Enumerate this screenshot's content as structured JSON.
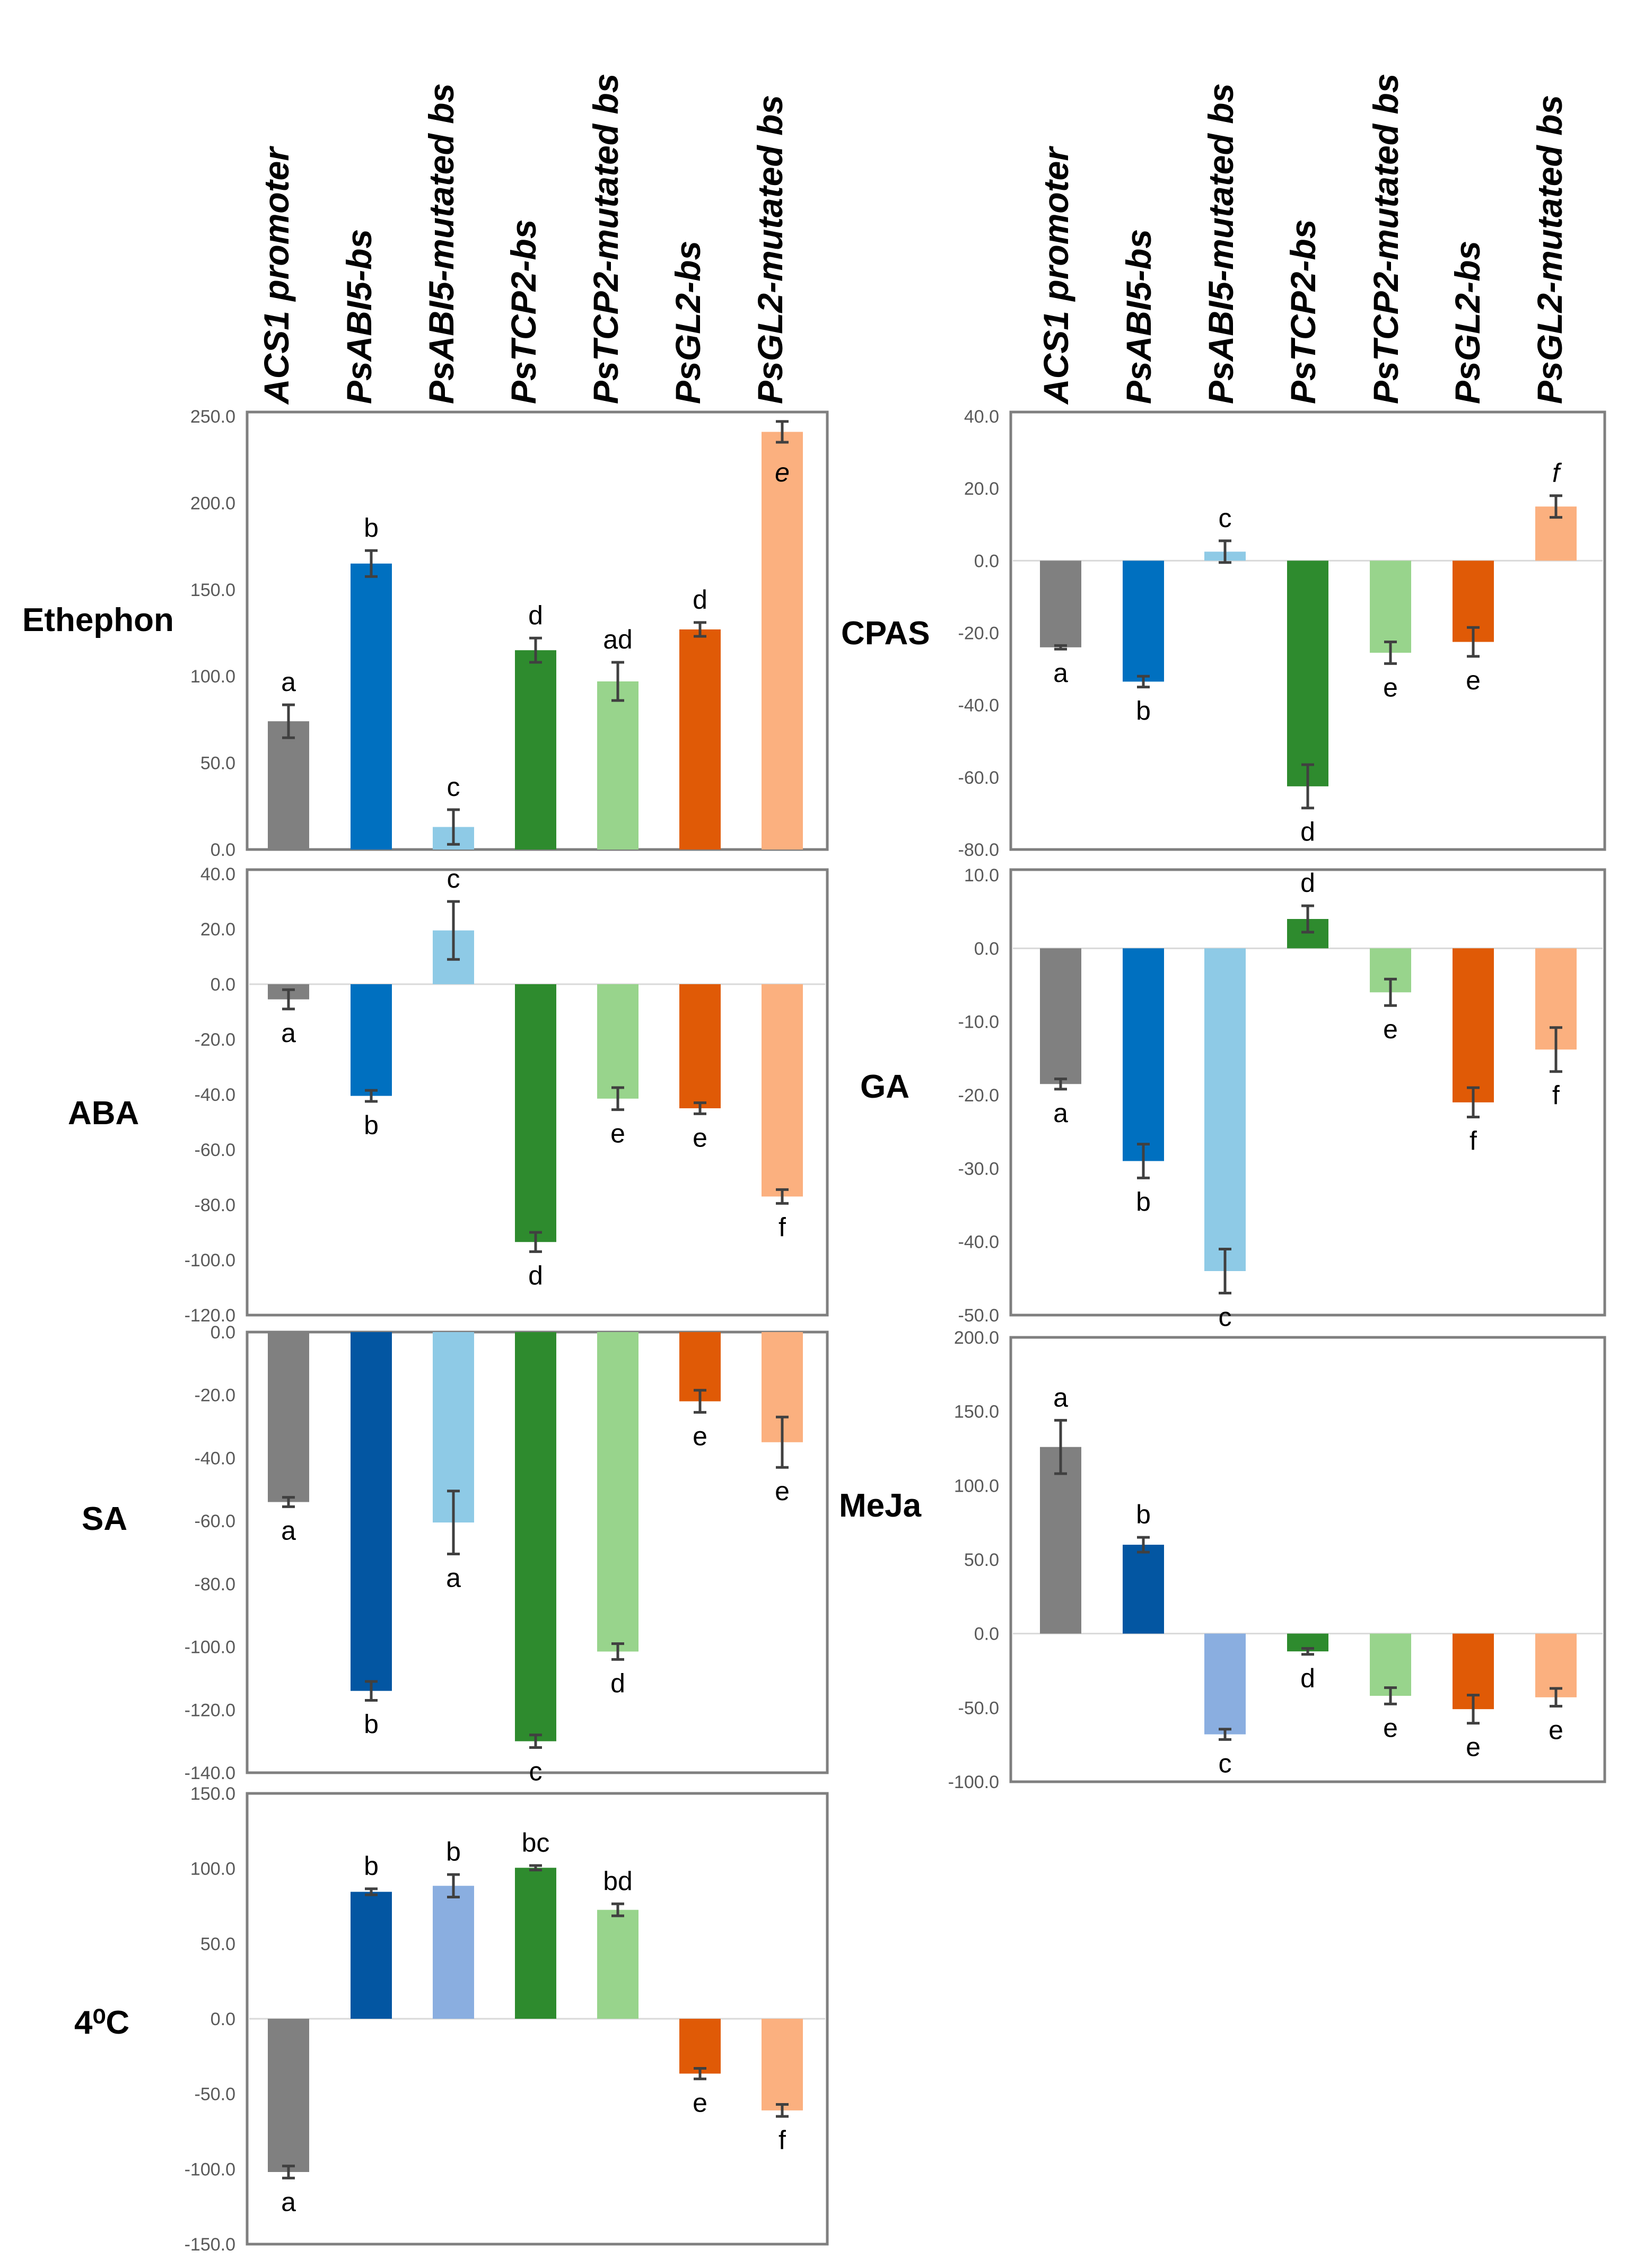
{
  "column_labels": [
    "ACS1 promoter",
    "PsABI5-bs",
    "PsABI5-mutated bs",
    "PsTCP2-bs",
    "PsTCP2-mutated bs",
    "PsGL2-bs",
    "PsGL2-mutated bs"
  ],
  "chart_data": [
    {
      "type": "bar",
      "title": "Ethephon",
      "categories": [
        "ACS1 promoter",
        "PsABI5-bs",
        "PsABI5-mutated bs",
        "PsTCP2-bs",
        "PsTCP2-mutated bs",
        "PsGL2-bs",
        "PsGL2-mutated bs"
      ],
      "values": [
        74.0,
        165.0,
        13.0,
        115.0,
        97.0,
        127.0,
        241.0
      ],
      "errors": [
        9.5,
        7.5,
        10.0,
        7.0,
        11.0,
        4.0,
        6.0
      ],
      "labels": [
        "a",
        "b",
        "c",
        "d",
        "ad",
        "d",
        "e"
      ],
      "ylim": [
        0,
        250
      ],
      "yticks": [
        "250.0",
        "200.0",
        "150.0",
        "100.0",
        "50.0",
        "0.0"
      ]
    },
    {
      "type": "bar",
      "title": "CPAS",
      "categories": [
        "ACS1 promoter",
        "PsABI5-bs",
        "PsABI5-mutated bs",
        "PsTCP2-bs",
        "PsTCP2-mutated bs",
        "PsGL2-bs",
        "PsGL2-mutated bs"
      ],
      "values": [
        -24.0,
        -33.5,
        2.5,
        -62.5,
        -25.5,
        -22.5,
        15.0
      ],
      "errors": [
        0.5,
        1.5,
        3.0,
        6.0,
        3.0,
        4.0,
        3.0
      ],
      "labels": [
        "a",
        "b",
        "c",
        "d",
        "e",
        "e",
        "f"
      ],
      "ylim": [
        -80,
        40
      ],
      "yticks": [
        "40.0",
        "20.0",
        "0.0",
        "-20.0",
        "-40.0",
        "-60.0",
        "-80.0"
      ]
    },
    {
      "type": "bar",
      "title": "ABA",
      "categories": [
        "ACS1 promoter",
        "PsABI5-bs",
        "PsABI5-mutated bs",
        "PsTCP2-bs",
        "PsTCP2-mutated bs",
        "PsGL2-bs",
        "PsGL2-mutated bs"
      ],
      "values": [
        -5.5,
        -40.5,
        19.5,
        -93.5,
        -41.5,
        -45.0,
        -77.0
      ],
      "errors": [
        3.5,
        2.0,
        10.5,
        3.5,
        4.0,
        2.0,
        2.5
      ],
      "labels": [
        "a",
        "b",
        "c",
        "d",
        "e",
        "e",
        "f"
      ],
      "ylim": [
        -120,
        40
      ],
      "yticks": [
        "40.0",
        "20.0",
        "0.0",
        "-20.0",
        "-40.0",
        "-60.0",
        "-80.0",
        "-100.0",
        "-120.0"
      ]
    },
    {
      "type": "bar",
      "title": "GA",
      "categories": [
        "ACS1 promoter",
        "PsABI5-bs",
        "PsABI5-mutated bs",
        "PsTCP2-bs",
        "PsTCP2-mutated bs",
        "PsGL2-bs",
        "PsGL2-mutated bs"
      ],
      "values": [
        -18.5,
        -29.0,
        -44.0,
        4.0,
        -6.0,
        -21.0,
        -13.8
      ],
      "errors": [
        0.7,
        2.3,
        3.0,
        1.8,
        1.8,
        2.0,
        3.0
      ],
      "labels": [
        "a",
        "b",
        "c",
        "d",
        "e",
        "f",
        "f"
      ],
      "ylim": [
        -50,
        10
      ],
      "yticks": [
        "10.0",
        "0.0",
        "-10.0",
        "-20.0",
        "-30.0",
        "-40.0",
        "-50.0"
      ]
    },
    {
      "type": "bar",
      "title": "SA",
      "categories": [
        "ACS1 promoter",
        "PsABI5-bs",
        "PsABI5-mutated bs",
        "PsTCP2-bs",
        "PsTCP2-mutated bs",
        "PsGL2-bs",
        "PsGL2-mutated bs"
      ],
      "values": [
        -54.0,
        -114.0,
        -60.5,
        -130.0,
        -101.5,
        -22.0,
        -35.0
      ],
      "errors": [
        1.5,
        3.0,
        10.0,
        2.0,
        2.5,
        3.5,
        8.0
      ],
      "labels": [
        "a",
        "b",
        "a",
        "c",
        "d",
        "e",
        "e"
      ],
      "ylim": [
        -140,
        0
      ],
      "yticks": [
        "0.0",
        "-20.0",
        "-40.0",
        "-60.0",
        "-80.0",
        "-100.0",
        "-120.0",
        "-140.0"
      ]
    },
    {
      "type": "bar",
      "title": "MeJa",
      "categories": [
        "ACS1 promoter",
        "PsABI5-bs",
        "PsABI5-mutated bs",
        "PsTCP2-bs",
        "PsTCP2-mutated bs",
        "PsGL2-bs",
        "PsGL2-mutated bs"
      ],
      "values": [
        126.0,
        60.0,
        -68.0,
        -12.0,
        -42.0,
        -51.0,
        -43.0
      ],
      "errors": [
        18.0,
        5.0,
        3.5,
        2.0,
        5.5,
        9.5,
        6.0
      ],
      "labels": [
        "a",
        "b",
        "c",
        "d",
        "e",
        "e",
        "e"
      ],
      "ylim": [
        -100,
        200
      ],
      "yticks": [
        "200.0",
        "150.0",
        "100.0",
        "50.0",
        "0.0",
        "-50.0",
        "-100.0"
      ]
    },
    {
      "type": "bar",
      "title": "4⁰C",
      "categories": [
        "ACS1 promoter",
        "PsABI5-bs",
        "PsABI5-mutated bs",
        "PsTCP2-bs",
        "PsTCP2-mutated bs",
        "PsGL2-bs",
        "PsGL2-mutated bs"
      ],
      "values": [
        -102.0,
        84.5,
        88.5,
        100.5,
        72.5,
        -36.5,
        -61.0
      ],
      "errors": [
        4.0,
        2.0,
        7.5,
        1.5,
        4.0,
        3.5,
        4.0
      ],
      "labels": [
        "a",
        "b",
        "b",
        "bc",
        "bd",
        "e",
        "f"
      ],
      "ylim": [
        -150,
        150
      ],
      "yticks": [
        "150.0",
        "100.0",
        "50.0",
        "0.0",
        "-50.0",
        "-100.0",
        "-150.0"
      ]
    }
  ],
  "colors": {
    "frame": "#7f7f7f",
    "axis_text": "#595959",
    "error_bar": "#404040",
    "ethephon": [
      "#808080",
      "#0070c0",
      "#8ecae6",
      "#2e8b2e",
      "#98d48c",
      "#e05a06",
      "#fbb07f"
    ],
    "cpas": [
      "#808080",
      "#0070c0",
      "#8ecae6",
      "#2e8b2e",
      "#98d48c",
      "#e05a06",
      "#fbb07f"
    ],
    "aba": [
      "#808080",
      "#0070c0",
      "#8ecae6",
      "#2e8b2e",
      "#98d48c",
      "#e05a06",
      "#fbb07f"
    ],
    "ga": [
      "#808080",
      "#0070c0",
      "#8ecae6",
      "#2e8b2e",
      "#98d48c",
      "#e05a06",
      "#fbb07f"
    ],
    "sa": [
      "#808080",
      "#0356a2",
      "#8ecae6",
      "#2e8b2e",
      "#98d48c",
      "#e05a06",
      "#fbb07f"
    ],
    "meja": [
      "#808080",
      "#0356a2",
      "#8aaee0",
      "#2e8b2e",
      "#98d48c",
      "#e05a06",
      "#fbb07f"
    ],
    "cold": [
      "#808080",
      "#0356a2",
      "#8aaee0",
      "#2e8b2e",
      "#98d48c",
      "#e05a06",
      "#fbb07f"
    ]
  }
}
